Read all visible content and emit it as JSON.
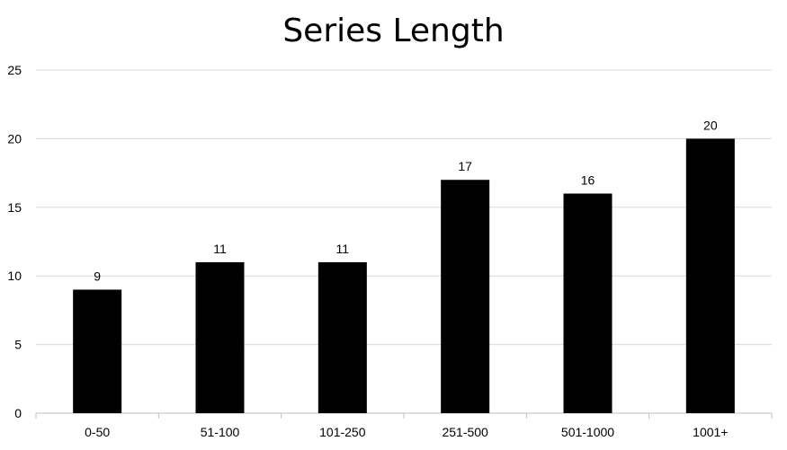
{
  "chart_data": {
    "type": "bar",
    "title": "Series Length",
    "categories": [
      "0-50",
      "51-100",
      "101-250",
      "251-500",
      "501-1000",
      "1001+"
    ],
    "values": [
      9,
      11,
      11,
      17,
      16,
      20
    ],
    "xlabel": "",
    "ylabel": "",
    "ylim": [
      0,
      25
    ],
    "yticks": [
      0,
      5,
      10,
      15,
      20,
      25
    ],
    "grid": true,
    "legend": "none",
    "colors": {
      "bar": "#000000",
      "grid": "#d9d9d9",
      "axis": "#bfbfbf"
    }
  }
}
